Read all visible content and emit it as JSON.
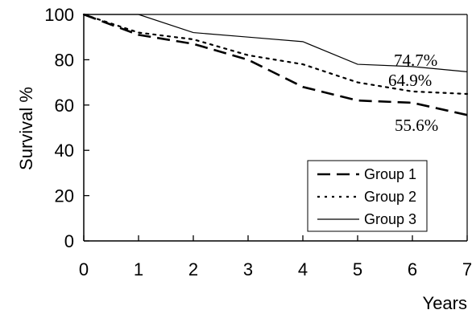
{
  "chart_data": {
    "type": "line",
    "xlabel": "Years",
    "ylabel": "Survival %",
    "xlim": [
      0,
      7
    ],
    "ylim": [
      0,
      100
    ],
    "xticks": [
      "0",
      "1",
      "2",
      "3",
      "4",
      "5",
      "6",
      "7"
    ],
    "yticks": [
      "0",
      "20",
      "40",
      "60",
      "80",
      "100"
    ],
    "grid": false,
    "legend_position": "bottom-right",
    "series": [
      {
        "name": "Group 1",
        "style": "dashed",
        "x": [
          0,
          1,
          2,
          3,
          4,
          5,
          6,
          7
        ],
        "y": [
          100,
          91,
          87,
          80,
          68,
          62,
          61,
          55.6
        ]
      },
      {
        "name": "Group 2",
        "style": "dotted",
        "x": [
          0,
          1,
          2,
          3,
          4,
          5,
          6,
          7
        ],
        "y": [
          100,
          92,
          89,
          82,
          78,
          70,
          66,
          64.9
        ]
      },
      {
        "name": "Group 3",
        "style": "solid",
        "x": [
          0,
          1,
          2,
          3,
          4,
          5,
          6,
          7
        ],
        "y": [
          100,
          100,
          92,
          90,
          88,
          78,
          77,
          74.7
        ]
      }
    ],
    "annotations": [
      {
        "text": "74.7%",
        "series": "Group 3"
      },
      {
        "text": "64.9%",
        "series": "Group 2"
      },
      {
        "text": "55.6%",
        "series": "Group 1"
      }
    ]
  }
}
